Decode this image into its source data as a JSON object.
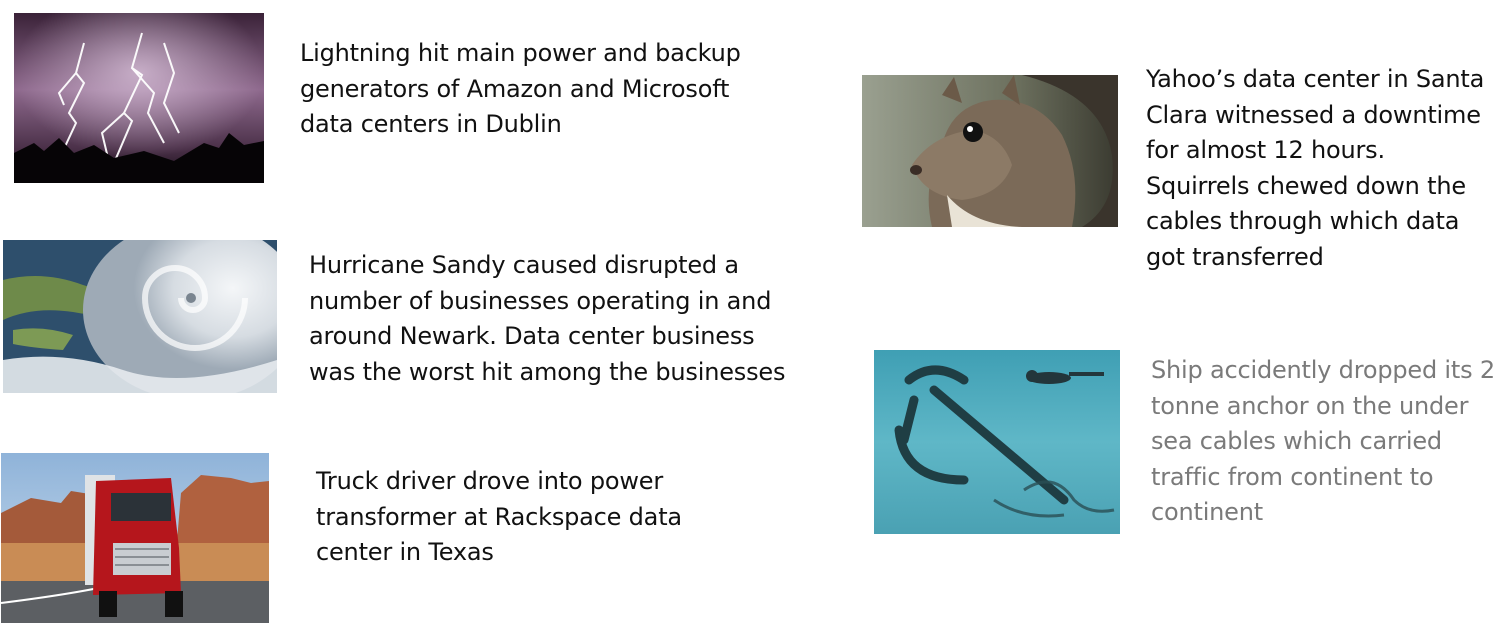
{
  "captions": {
    "lightning": "Lightning hit main power and backup\ngenerators of Amazon and Microsoft\ndata centers in Dublin",
    "hurricane": "Hurricane Sandy caused disrupted a\nnumber of businesses operating in and\naround Newark. Data center business\nwas the worst hit among the businesses",
    "truck": "Truck driver drove into power\ntransformer at Rackspace data\ncenter in Texas",
    "squirrel": "Yahoo’s data center in Santa\nClara witnessed a downtime\nfor almost 12 hours.\nSquirrels chewed down the\ncables through which data\ngot transferred",
    "anchor": "Ship accidently dropped its 2\ntonne anchor on the under\nsea cables which carried\ntraffic from continent to\ncontinent"
  },
  "images": {
    "lightning": "lightning-photo",
    "hurricane": "hurricane-satellite-photo",
    "truck": "red-truck-photo",
    "squirrel": "squirrel-photo",
    "anchor": "underwater-anchor-photo"
  },
  "colors": {
    "caption_text": "#111111",
    "muted_caption_text": "#7a7a7a",
    "background": "#ffffff"
  }
}
